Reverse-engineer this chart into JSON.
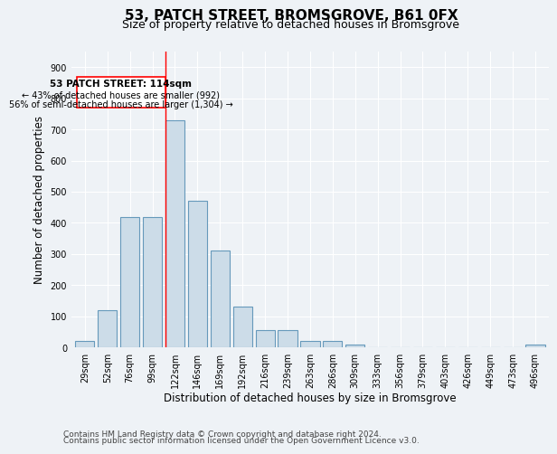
{
  "title": "53, PATCH STREET, BROMSGROVE, B61 0FX",
  "subtitle": "Size of property relative to detached houses in Bromsgrove",
  "xlabel": "Distribution of detached houses by size in Bromsgrove",
  "ylabel": "Number of detached properties",
  "bar_labels": [
    "29sqm",
    "52sqm",
    "76sqm",
    "99sqm",
    "122sqm",
    "146sqm",
    "169sqm",
    "192sqm",
    "216sqm",
    "239sqm",
    "263sqm",
    "286sqm",
    "309sqm",
    "333sqm",
    "356sqm",
    "379sqm",
    "403sqm",
    "426sqm",
    "449sqm",
    "473sqm",
    "496sqm"
  ],
  "bar_values": [
    20,
    120,
    420,
    420,
    730,
    470,
    310,
    130,
    55,
    55,
    20,
    20,
    10,
    0,
    0,
    0,
    0,
    0,
    0,
    0,
    10
  ],
  "bar_color": "#ccdce8",
  "bar_edgecolor": "#6699bb",
  "ylim": [
    0,
    950
  ],
  "yticks": [
    0,
    100,
    200,
    300,
    400,
    500,
    600,
    700,
    800,
    900
  ],
  "property_label": "53 PATCH STREET: 114sqm",
  "annotation_line1": "← 43% of detached houses are smaller (992)",
  "annotation_line2": "56% of semi-detached houses are larger (1,304) →",
  "vline_bar_index": 4,
  "footer_line1": "Contains HM Land Registry data © Crown copyright and database right 2024.",
  "footer_line2": "Contains public sector information licensed under the Open Government Licence v3.0.",
  "bg_color": "#eef2f6",
  "plot_bg_color": "#eef2f6",
  "grid_color": "#ffffff",
  "title_fontsize": 11,
  "subtitle_fontsize": 9,
  "xlabel_fontsize": 8.5,
  "ylabel_fontsize": 8.5,
  "tick_fontsize": 7,
  "footer_fontsize": 6.5
}
